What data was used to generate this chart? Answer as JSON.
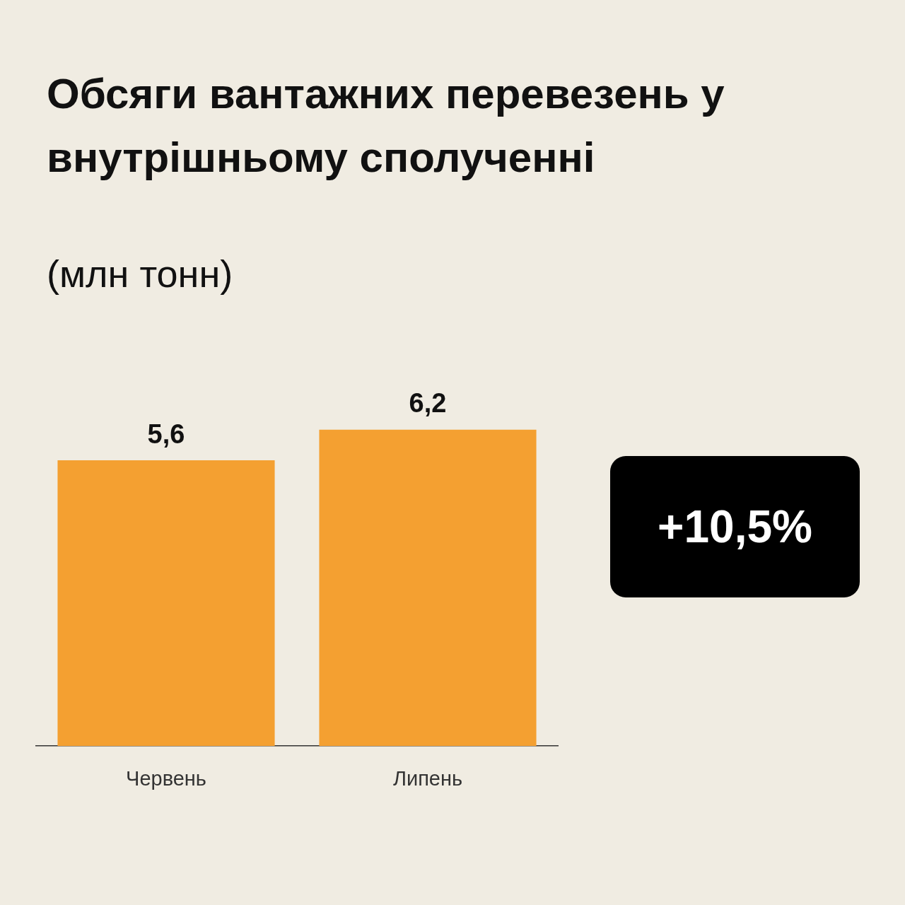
{
  "chart_data": {
    "type": "bar",
    "title": "Обсяги вантажних перевезень у внутрішньому сполученні",
    "subtitle": "(млн тонн)",
    "categories": [
      "Червень",
      "Липень"
    ],
    "values": [
      5.6,
      6.2
    ],
    "color": "#f4a031",
    "data_labels": true,
    "value_labels": [
      "5,6",
      "6,2"
    ],
    "grid": false,
    "legend": false,
    "tick_labels": "x",
    "annotations": [
      "+10,5%"
    ]
  }
}
